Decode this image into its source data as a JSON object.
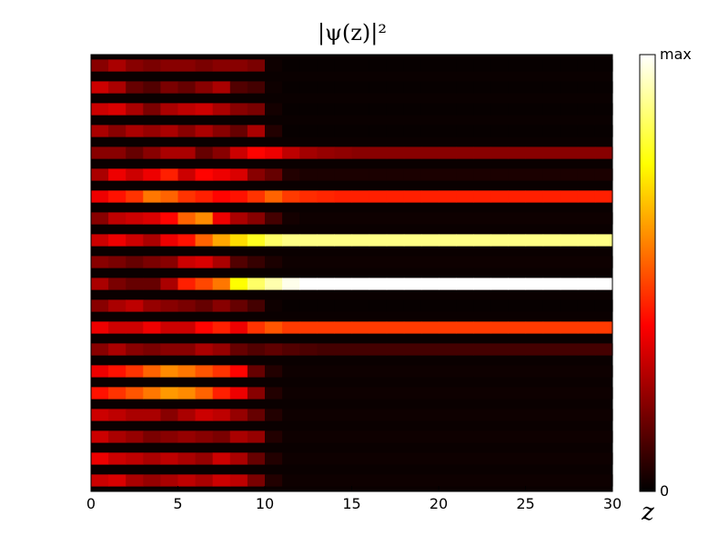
{
  "chart_data": {
    "type": "heatmap",
    "title": "|ψ(z)|²",
    "xlabel": "z",
    "ylabel": "",
    "xlim": [
      0,
      30
    ],
    "x_ticks": [
      "0",
      "5",
      "10",
      "15",
      "20",
      "25",
      "30"
    ],
    "y_ticks": [],
    "colormap": "hot",
    "colorbar": {
      "tick_labels": [
        "0",
        "max"
      ],
      "colors": [
        "#000000",
        "#ff0000",
        "#ffff00",
        "#ffffff"
      ]
    },
    "n_channels": 20,
    "z_samples": [
      0,
      1,
      2,
      3,
      4,
      5,
      6,
      7,
      8,
      9,
      10,
      11,
      12,
      13,
      14,
      15,
      16,
      17,
      18,
      19,
      20,
      21,
      22,
      23,
      24,
      25,
      26,
      27,
      28,
      29,
      30
    ],
    "intensity": [
      [
        0.2,
        0.25,
        0.2,
        0.18,
        0.2,
        0.2,
        0.18,
        0.2,
        0.2,
        0.18,
        0.02,
        0.01,
        0.01,
        0.01,
        0.01,
        0.01,
        0.01,
        0.01,
        0.01,
        0.01,
        0.01,
        0.01,
        0.01,
        0.01,
        0.01,
        0.01,
        0.01,
        0.01,
        0.01,
        0.01,
        0.01
      ],
      [
        0.3,
        0.25,
        0.15,
        0.12,
        0.18,
        0.15,
        0.2,
        0.25,
        0.12,
        0.1,
        0.02,
        0.01,
        0.01,
        0.01,
        0.01,
        0.01,
        0.01,
        0.01,
        0.01,
        0.01,
        0.01,
        0.01,
        0.01,
        0.01,
        0.01,
        0.01,
        0.01,
        0.01,
        0.01,
        0.01,
        0.01
      ],
      [
        0.3,
        0.32,
        0.25,
        0.18,
        0.25,
        0.28,
        0.3,
        0.25,
        0.2,
        0.18,
        0.03,
        0.01,
        0.01,
        0.01,
        0.01,
        0.01,
        0.01,
        0.01,
        0.01,
        0.01,
        0.01,
        0.01,
        0.01,
        0.01,
        0.01,
        0.01,
        0.01,
        0.01,
        0.01,
        0.01,
        0.01
      ],
      [
        0.25,
        0.2,
        0.25,
        0.22,
        0.25,
        0.2,
        0.25,
        0.2,
        0.15,
        0.25,
        0.05,
        0.01,
        0.01,
        0.01,
        0.01,
        0.01,
        0.01,
        0.01,
        0.01,
        0.01,
        0.01,
        0.01,
        0.01,
        0.01,
        0.01,
        0.01,
        0.01,
        0.01,
        0.01,
        0.01,
        0.01
      ],
      [
        0.2,
        0.2,
        0.15,
        0.2,
        0.25,
        0.25,
        0.15,
        0.2,
        0.3,
        0.38,
        0.35,
        0.28,
        0.24,
        0.22,
        0.21,
        0.2,
        0.2,
        0.2,
        0.2,
        0.2,
        0.2,
        0.2,
        0.2,
        0.2,
        0.2,
        0.2,
        0.2,
        0.2,
        0.2,
        0.2,
        0.2
      ],
      [
        0.25,
        0.35,
        0.3,
        0.35,
        0.42,
        0.3,
        0.38,
        0.35,
        0.32,
        0.2,
        0.15,
        0.05,
        0.04,
        0.04,
        0.04,
        0.04,
        0.04,
        0.04,
        0.04,
        0.04,
        0.04,
        0.04,
        0.04,
        0.04,
        0.04,
        0.04,
        0.04,
        0.04,
        0.04,
        0.04,
        0.04
      ],
      [
        0.35,
        0.4,
        0.45,
        0.55,
        0.52,
        0.45,
        0.42,
        0.38,
        0.4,
        0.45,
        0.52,
        0.46,
        0.44,
        0.43,
        0.42,
        0.42,
        0.42,
        0.42,
        0.42,
        0.42,
        0.42,
        0.42,
        0.42,
        0.42,
        0.42,
        0.42,
        0.42,
        0.42,
        0.42,
        0.42,
        0.42
      ],
      [
        0.2,
        0.28,
        0.3,
        0.32,
        0.38,
        0.52,
        0.58,
        0.35,
        0.25,
        0.2,
        0.1,
        0.03,
        0.02,
        0.02,
        0.02,
        0.02,
        0.02,
        0.02,
        0.02,
        0.02,
        0.02,
        0.02,
        0.02,
        0.02,
        0.02,
        0.02,
        0.02,
        0.02,
        0.02,
        0.02,
        0.02
      ],
      [
        0.3,
        0.35,
        0.3,
        0.25,
        0.35,
        0.4,
        0.52,
        0.62,
        0.7,
        0.78,
        0.85,
        0.88,
        0.88,
        0.88,
        0.88,
        0.88,
        0.88,
        0.88,
        0.88,
        0.88,
        0.88,
        0.88,
        0.88,
        0.88,
        0.88,
        0.88,
        0.88,
        0.88,
        0.88,
        0.88,
        0.88
      ],
      [
        0.2,
        0.18,
        0.15,
        0.18,
        0.2,
        0.3,
        0.32,
        0.25,
        0.12,
        0.08,
        0.04,
        0.02,
        0.02,
        0.02,
        0.02,
        0.02,
        0.02,
        0.02,
        0.02,
        0.02,
        0.02,
        0.02,
        0.02,
        0.02,
        0.02,
        0.02,
        0.02,
        0.02,
        0.02,
        0.02,
        0.02
      ],
      [
        0.25,
        0.18,
        0.15,
        0.15,
        0.25,
        0.42,
        0.48,
        0.55,
        0.75,
        0.85,
        0.92,
        0.98,
        1.0,
        1.0,
        1.0,
        1.0,
        1.0,
        1.0,
        1.0,
        1.0,
        1.0,
        1.0,
        1.0,
        1.0,
        1.0,
        1.0,
        1.0,
        1.0,
        1.0,
        1.0,
        1.0
      ],
      [
        0.2,
        0.25,
        0.28,
        0.22,
        0.2,
        0.18,
        0.15,
        0.2,
        0.15,
        0.1,
        0.02,
        0.01,
        0.01,
        0.01,
        0.01,
        0.01,
        0.01,
        0.01,
        0.01,
        0.01,
        0.01,
        0.01,
        0.01,
        0.01,
        0.01,
        0.01,
        0.01,
        0.01,
        0.01,
        0.01,
        0.01
      ],
      [
        0.35,
        0.3,
        0.3,
        0.35,
        0.3,
        0.3,
        0.38,
        0.42,
        0.35,
        0.45,
        0.5,
        0.46,
        0.46,
        0.46,
        0.46,
        0.46,
        0.46,
        0.46,
        0.46,
        0.46,
        0.46,
        0.46,
        0.46,
        0.46,
        0.46,
        0.46,
        0.46,
        0.46,
        0.46,
        0.46,
        0.46
      ],
      [
        0.2,
        0.25,
        0.2,
        0.18,
        0.2,
        0.2,
        0.25,
        0.22,
        0.15,
        0.12,
        0.14,
        0.12,
        0.11,
        0.1,
        0.1,
        0.1,
        0.1,
        0.1,
        0.1,
        0.1,
        0.1,
        0.1,
        0.1,
        0.1,
        0.1,
        0.1,
        0.1,
        0.1,
        0.1,
        0.1,
        0.1
      ],
      [
        0.35,
        0.4,
        0.45,
        0.52,
        0.58,
        0.55,
        0.5,
        0.45,
        0.38,
        0.15,
        0.05,
        0.02,
        0.02,
        0.02,
        0.02,
        0.02,
        0.02,
        0.02,
        0.02,
        0.02,
        0.02,
        0.02,
        0.02,
        0.02,
        0.02,
        0.02,
        0.02,
        0.02,
        0.02,
        0.02,
        0.02
      ],
      [
        0.4,
        0.45,
        0.5,
        0.55,
        0.6,
        0.58,
        0.52,
        0.42,
        0.35,
        0.2,
        0.05,
        0.02,
        0.02,
        0.02,
        0.02,
        0.02,
        0.02,
        0.02,
        0.02,
        0.02,
        0.02,
        0.02,
        0.02,
        0.02,
        0.02,
        0.02,
        0.02,
        0.02,
        0.02,
        0.02,
        0.02
      ],
      [
        0.3,
        0.28,
        0.25,
        0.25,
        0.2,
        0.25,
        0.3,
        0.28,
        0.22,
        0.15,
        0.05,
        0.02,
        0.02,
        0.02,
        0.02,
        0.02,
        0.02,
        0.02,
        0.02,
        0.02,
        0.02,
        0.02,
        0.02,
        0.02,
        0.02,
        0.02,
        0.02,
        0.02,
        0.02,
        0.02,
        0.02
      ],
      [
        0.3,
        0.25,
        0.22,
        0.18,
        0.2,
        0.22,
        0.2,
        0.18,
        0.25,
        0.22,
        0.05,
        0.02,
        0.02,
        0.02,
        0.02,
        0.02,
        0.02,
        0.02,
        0.02,
        0.02,
        0.02,
        0.02,
        0.02,
        0.02,
        0.02,
        0.02,
        0.02,
        0.02,
        0.02,
        0.02,
        0.02
      ],
      [
        0.35,
        0.3,
        0.28,
        0.25,
        0.28,
        0.25,
        0.22,
        0.3,
        0.25,
        0.15,
        0.05,
        0.02,
        0.02,
        0.02,
        0.02,
        0.02,
        0.02,
        0.02,
        0.02,
        0.02,
        0.02,
        0.02,
        0.02,
        0.02,
        0.02,
        0.02,
        0.02,
        0.02,
        0.02,
        0.02,
        0.02
      ],
      [
        0.3,
        0.32,
        0.25,
        0.22,
        0.25,
        0.28,
        0.25,
        0.3,
        0.28,
        0.18,
        0.05,
        0.02,
        0.02,
        0.02,
        0.02,
        0.02,
        0.02,
        0.02,
        0.02,
        0.02,
        0.02,
        0.02,
        0.02,
        0.02,
        0.02,
        0.02,
        0.02,
        0.02,
        0.02,
        0.02,
        0.02
      ]
    ]
  }
}
